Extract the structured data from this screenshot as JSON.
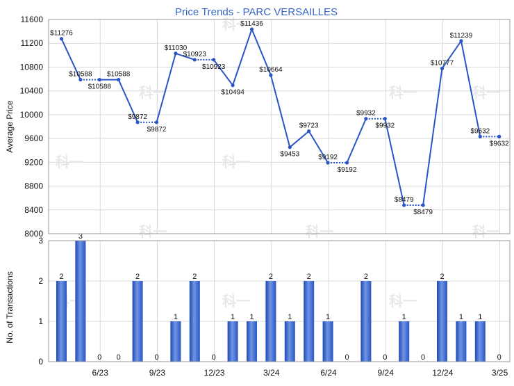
{
  "chart_data": [
    {
      "type": "line",
      "title": "Price Trends - PARC VERSAILLES",
      "ylabel": "Average Price",
      "ylim": [
        8000,
        11600
      ],
      "yticks": [
        8000,
        8400,
        8800,
        9200,
        9600,
        10000,
        10400,
        10800,
        11200,
        11600
      ],
      "xticks": [
        "6/23",
        "9/23",
        "12/23",
        "3/24",
        "6/24",
        "9/24",
        "12/24",
        "3/25"
      ],
      "grid": true,
      "series": [
        {
          "color": "#2b55c6",
          "points": [
            {
              "month": 1,
              "value": 11276,
              "label": "$11276",
              "carried": false
            },
            {
              "month": 2,
              "value": 10588,
              "label": "$10588",
              "carried": false
            },
            {
              "month": 3,
              "value": 10588,
              "label": "$10588",
              "carried": true
            },
            {
              "month": 4,
              "value": 10588,
              "label": "$10588",
              "carried": false
            },
            {
              "month": 5,
              "value": 9872,
              "label": "$9872",
              "carried": false
            },
            {
              "month": 6,
              "value": 9872,
              "label": "$9872",
              "carried": true
            },
            {
              "month": 7,
              "value": 11030,
              "label": "$11030",
              "carried": false
            },
            {
              "month": 8,
              "value": 10923,
              "label": "$10923",
              "carried": false
            },
            {
              "month": 9,
              "value": 10923,
              "label": "$10923",
              "carried": true
            },
            {
              "month": 10,
              "value": 10494,
              "label": "$10494",
              "carried": false
            },
            {
              "month": 11,
              "value": 11436,
              "label": "$11436",
              "carried": false
            },
            {
              "month": 12,
              "value": 10664,
              "label": "$10664",
              "carried": false
            },
            {
              "month": 13,
              "value": 9453,
              "label": "$9453",
              "carried": false
            },
            {
              "month": 14,
              "value": 9723,
              "label": "$9723",
              "carried": false
            },
            {
              "month": 15,
              "value": 9192,
              "label": "$9192",
              "carried": false
            },
            {
              "month": 16,
              "value": 9192,
              "label": "$9192",
              "carried": true
            },
            {
              "month": 17,
              "value": 9932,
              "label": "$9932",
              "carried": false
            },
            {
              "month": 18,
              "value": 9932,
              "label": "$9932",
              "carried": true
            },
            {
              "month": 19,
              "value": 8479,
              "label": "$8479",
              "carried": false
            },
            {
              "month": 20,
              "value": 8479,
              "label": "$8479",
              "carried": true
            },
            {
              "month": 21,
              "value": 10777,
              "label": "$10777",
              "carried": false
            },
            {
              "month": 22,
              "value": 11239,
              "label": "$11239",
              "carried": false
            },
            {
              "month": 23,
              "value": 9632,
              "label": "$9632",
              "carried": false
            },
            {
              "month": 24,
              "value": 9632,
              "label": "$9632",
              "carried": true
            }
          ]
        }
      ]
    },
    {
      "type": "bar",
      "ylabel": "No. of Transactions",
      "ylim": [
        0,
        3
      ],
      "yticks": [
        0,
        1,
        2,
        3
      ],
      "xticks": [
        "6/23",
        "9/23",
        "12/23",
        "3/24",
        "6/24",
        "9/24",
        "12/24",
        "3/25"
      ],
      "grid": true,
      "color": "#3660c8",
      "values": [
        2,
        3,
        0,
        0,
        2,
        0,
        1,
        2,
        0,
        1,
        1,
        2,
        1,
        2,
        1,
        0,
        2,
        0,
        1,
        0,
        2,
        1,
        1,
        0
      ]
    }
  ]
}
